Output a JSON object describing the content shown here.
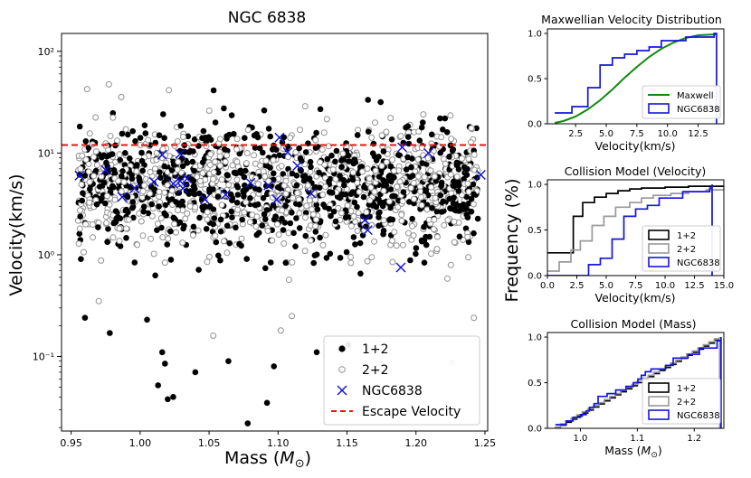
{
  "figure": {
    "ylabel_shared": "Frequency (%)"
  },
  "chart_data": [
    {
      "type": "scatter",
      "title": "NGC 6838",
      "xlabel": "Mass ($M_{\\odot}$)",
      "xlabel_main": "Mass (",
      "xlabel_sym": "M",
      "xlabel_sub": "⊙",
      "xlabel_end": ")",
      "ylabel": "Velocity(km/s)",
      "yscale": "log",
      "xlim": [
        0.943,
        1.252
      ],
      "ylim": [
        0.0185,
        150
      ],
      "xticks": [
        0.95,
        1.0,
        1.05,
        1.1,
        1.15,
        1.2,
        1.25
      ],
      "xtick_labels": [
        "0.95",
        "1.00",
        "1.05",
        "1.10",
        "1.15",
        "1.20",
        "1.25"
      ],
      "yticks": [
        0.1,
        1,
        10,
        100
      ],
      "ytick_labels": [
        "10⁻¹",
        "10⁰",
        "10¹",
        "10²"
      ],
      "escape_velocity": 12.0,
      "background_cloud": {
        "note": "dense overlapping simulated populations",
        "x_range": [
          0.955,
          1.245
        ],
        "median_velocity": 4.5,
        "points_per_series": 850
      },
      "series": [
        {
          "name": "1+2",
          "marker": "filled circle",
          "color": "#000000",
          "outliers": [
            [
              1.013,
              0.052
            ],
            [
              1.016,
              0.11
            ],
            [
              1.018,
              0.085
            ],
            [
              1.02,
              0.038
            ],
            [
              1.024,
              0.04
            ],
            [
              1.04,
              0.07
            ],
            [
              1.078,
              0.022
            ],
            [
              1.092,
              0.035
            ],
            [
              1.097,
              0.08
            ],
            [
              1.064,
              0.09
            ],
            [
              1.128,
              0.11
            ],
            [
              1.151,
              0.13
            ],
            [
              0.978,
              0.17
            ],
            [
              1.005,
              0.23
            ],
            [
              0.96,
              0.24
            ]
          ]
        },
        {
          "name": "2+2",
          "marker": "open circle",
          "color": "#969696",
          "outliers": [
            [
              1.053,
              0.16
            ],
            [
              1.102,
              0.18
            ],
            [
              1.226,
              0.087
            ],
            [
              0.97,
              0.35
            ],
            [
              1.11,
              0.25
            ],
            [
              1.242,
              0.24
            ]
          ]
        },
        {
          "name": "NGC6838",
          "marker": "x",
          "color": "#1010d8",
          "points": [
            [
              0.956,
              6.0
            ],
            [
              0.975,
              6.8
            ],
            [
              0.987,
              3.7
            ],
            [
              0.996,
              4.5
            ],
            [
              1.01,
              5.2
            ],
            [
              1.016,
              9.6
            ],
            [
              1.024,
              5.0
            ],
            [
              1.029,
              9.8
            ],
            [
              1.029,
              5.3
            ],
            [
              1.031,
              4.5
            ],
            [
              1.034,
              5.6
            ],
            [
              1.047,
              3.5
            ],
            [
              1.062,
              3.9
            ],
            [
              1.08,
              5.1
            ],
            [
              1.093,
              4.8
            ],
            [
              1.099,
              3.5
            ],
            [
              1.101,
              14.2
            ],
            [
              1.107,
              10.2
            ],
            [
              1.114,
              7.5
            ],
            [
              1.124,
              4.0
            ],
            [
              1.163,
              2.2
            ],
            [
              1.165,
              1.75
            ],
            [
              1.189,
              0.75
            ],
            [
              1.19,
              11.4
            ],
            [
              1.209,
              10.0
            ],
            [
              1.247,
              6.1
            ]
          ]
        }
      ],
      "legend": {
        "position": "lower right",
        "entries": [
          "1+2",
          "2+2",
          "NGC6838",
          "Escape Velocity"
        ]
      }
    },
    {
      "type": "line",
      "title": "Maxwellian Velocity Distribution",
      "xlabel": "Velocity(km/s)",
      "ylabel": "",
      "xlim": [
        0.2,
        14.6
      ],
      "ylim": [
        0,
        1.05
      ],
      "xticks": [
        2.5,
        5.0,
        7.5,
        10.0,
        12.5
      ],
      "xtick_labels": [
        "2.5",
        "5.0",
        "7.5",
        "10.0",
        "12.5"
      ],
      "yticks": [
        0.0,
        0.5,
        1.0
      ],
      "ytick_labels": [
        "0.0",
        "0.5",
        "1.0"
      ],
      "series": [
        {
          "name": "Maxwell",
          "kind": "smooth cumulative",
          "color": "#118811",
          "x": [
            0.8,
            1.5,
            2.5,
            3.5,
            4.5,
            5.5,
            6.5,
            7.5,
            8.5,
            9.5,
            10.5,
            11.5,
            12.5,
            14.0
          ],
          "y": [
            0.01,
            0.03,
            0.08,
            0.16,
            0.26,
            0.38,
            0.51,
            0.63,
            0.74,
            0.83,
            0.9,
            0.95,
            0.98,
            0.99
          ]
        },
        {
          "name": "NGC6838",
          "kind": "step cumulative",
          "color": "#1515dd",
          "x": [
            0.8,
            2.2,
            3.5,
            4.5,
            5.5,
            6.5,
            7.5,
            8.5,
            9.5,
            11.5,
            13.8,
            14.0
          ],
          "y": [
            0.12,
            0.19,
            0.4,
            0.65,
            0.73,
            0.77,
            0.81,
            0.85,
            0.92,
            0.96,
            1.0,
            0.0
          ]
        }
      ],
      "legend": {
        "position": "lower right",
        "entries": [
          "Maxwell",
          "NGC6838"
        ]
      }
    },
    {
      "type": "line",
      "title": "Collision Model (Velocity)",
      "xlabel": "Velocity(km/s)",
      "ylabel": "",
      "xlim": [
        0,
        15
      ],
      "ylim": [
        0,
        1.05
      ],
      "xticks": [
        0.0,
        2.5,
        5.0,
        7.5,
        10.0,
        12.5,
        15.0
      ],
      "xtick_labels": [
        "0.0",
        "2.5",
        "5.0",
        "7.5",
        "10.0",
        "12.5",
        "15.0"
      ],
      "yticks": [
        0.0,
        0.5,
        1.0
      ],
      "ytick_labels": [
        "0.0",
        "0.5",
        "1.0"
      ],
      "series": [
        {
          "name": "1+2",
          "kind": "step cumulative",
          "color": "#000000",
          "x": [
            0.0,
            1.5,
            2.2,
            3.0,
            4.0,
            5.0,
            6.0,
            7.0,
            8.0,
            10.0,
            12.0,
            15.0
          ],
          "y": [
            0.25,
            0.25,
            0.65,
            0.8,
            0.86,
            0.9,
            0.93,
            0.95,
            0.96,
            0.97,
            0.98,
            0.98
          ]
        },
        {
          "name": "2+2",
          "kind": "step cumulative",
          "color": "#999999",
          "x": [
            0.0,
            1.0,
            2.0,
            2.8,
            3.8,
            4.8,
            5.8,
            7.0,
            8.0,
            9.0,
            10.5,
            12.0,
            13.5,
            15.0
          ],
          "y": [
            0.05,
            0.15,
            0.28,
            0.38,
            0.55,
            0.65,
            0.75,
            0.8,
            0.85,
            0.88,
            0.9,
            0.92,
            0.94,
            0.96
          ]
        },
        {
          "name": "NGC6838",
          "kind": "step cumulative",
          "color": "#1515dd",
          "x": [
            0.0,
            3.5,
            4.5,
            5.5,
            6.5,
            7.5,
            8.5,
            9.5,
            11.5,
            13.8,
            14.0
          ],
          "y": [
            0.0,
            0.12,
            0.19,
            0.4,
            0.65,
            0.73,
            0.77,
            0.85,
            0.92,
            0.96,
            1.0
          ]
        }
      ],
      "legend": {
        "position": "lower right",
        "entries": [
          "1+2",
          "2+2",
          "NGC6838"
        ]
      }
    },
    {
      "type": "line",
      "title": "Collision Model (Mass)",
      "xlabel": "Mass ($M_{\\odot}$)",
      "xlabel_main": "Mass (",
      "xlabel_sym": "M",
      "xlabel_sub": "⊙",
      "xlabel_end": ")",
      "ylabel": "",
      "xlim": [
        0.942,
        1.252
      ],
      "ylim": [
        0,
        1.05
      ],
      "xticks": [
        1.0,
        1.1,
        1.2
      ],
      "xtick_labels": [
        "1.0",
        "1.1",
        "1.2"
      ],
      "yticks": [
        0.0,
        0.5,
        1.0
      ],
      "ytick_labels": [
        "0.0",
        "0.5",
        "1.0"
      ],
      "series": [
        {
          "name": "1+2",
          "kind": "near-linear cumulative",
          "color": "#000000",
          "x": [
            0.955,
            1.245
          ],
          "y": [
            0.0,
            1.0
          ]
        },
        {
          "name": "2+2",
          "kind": "near-linear cumulative",
          "color": "#999999",
          "x": [
            0.955,
            1.245
          ],
          "y": [
            0.0,
            1.0
          ]
        },
        {
          "name": "NGC6838",
          "kind": "step cumulative",
          "color": "#1515dd",
          "x": [
            0.956,
            0.975,
            0.987,
            1.0,
            1.01,
            1.016,
            1.024,
            1.031,
            1.047,
            1.062,
            1.08,
            1.093,
            1.101,
            1.107,
            1.114,
            1.124,
            1.15,
            1.163,
            1.189,
            1.209,
            1.24,
            1.247
          ],
          "y": [
            0.04,
            0.08,
            0.12,
            0.15,
            0.19,
            0.23,
            0.27,
            0.35,
            0.38,
            0.42,
            0.46,
            0.5,
            0.54,
            0.58,
            0.62,
            0.65,
            0.69,
            0.77,
            0.81,
            0.88,
            0.96,
            1.0
          ]
        }
      ],
      "legend": {
        "position": "lower right",
        "entries": [
          "1+2",
          "2+2",
          "NGC6838"
        ]
      }
    }
  ]
}
